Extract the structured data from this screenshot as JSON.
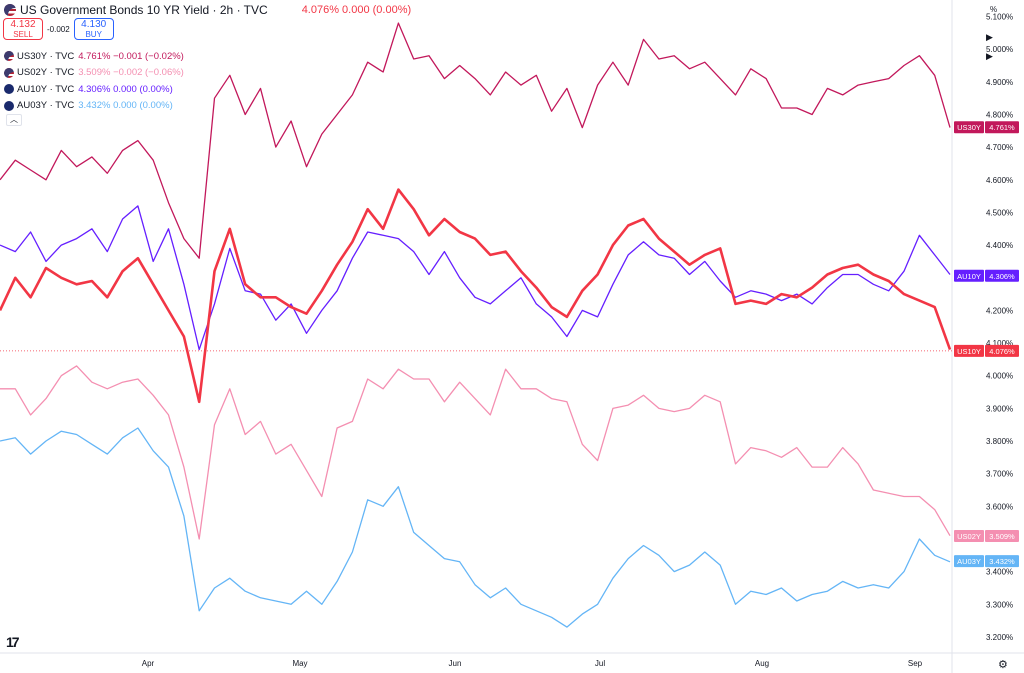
{
  "header": {
    "flag_icon": "us-flag-icon",
    "title": "US Government Bonds 10 YR Yield · 2h · TVC",
    "ohlc": "4.076% 0.000 (0.00%)",
    "ohlc_color": "#f23645"
  },
  "trade": {
    "sell_price": "4.132",
    "sell_label": "SELL",
    "spread": "-0.002",
    "buy_price": "4.130",
    "buy_label": "BUY"
  },
  "legend": [
    {
      "sym": "US30Y · TVC",
      "val": "4.761% −0.001 (−0.02%)",
      "color": "#c2185b",
      "flag": "us"
    },
    {
      "sym": "US02Y · TVC",
      "val": "3.509% −0.002 (−0.06%)",
      "color": "#f48fb1",
      "flag": "us"
    },
    {
      "sym": "AU10Y · TVC",
      "val": "4.306% 0.000 (0.00%)",
      "color": "#651fff",
      "flag": "au"
    },
    {
      "sym": "AU03Y · TVC",
      "val": "3.432% 0.000 (0.00%)",
      "color": "#64b5f6",
      "flag": "au"
    }
  ],
  "yaxis_unit": "%",
  "logo": "17",
  "chart_data": {
    "type": "line",
    "x_labels": [
      "Apr",
      "May",
      "Jun",
      "Jul",
      "Aug",
      "Sep"
    ],
    "ylim": [
      3.16,
      5.12
    ],
    "y_ticks": [
      "5.100%",
      "5.000%",
      "4.900%",
      "4.800%",
      "4.700%",
      "4.600%",
      "4.500%",
      "4.400%",
      "4.300%",
      "4.200%",
      "4.100%",
      "4.000%",
      "3.900%",
      "3.800%",
      "3.700%",
      "3.600%",
      "3.500%",
      "3.400%",
      "3.300%",
      "3.200%"
    ],
    "series": [
      {
        "name": "US30Y",
        "color": "#c2185b",
        "last": "4.761%",
        "last_value": 4.761,
        "values": [
          4.6,
          4.66,
          4.63,
          4.6,
          4.69,
          4.64,
          4.67,
          4.62,
          4.69,
          4.72,
          4.66,
          4.53,
          4.42,
          4.36,
          4.85,
          4.92,
          4.8,
          4.88,
          4.7,
          4.78,
          4.64,
          4.74,
          4.8,
          4.86,
          4.96,
          4.93,
          5.08,
          4.97,
          4.98,
          4.91,
          4.95,
          4.91,
          4.86,
          4.93,
          4.89,
          4.92,
          4.81,
          4.88,
          4.76,
          4.89,
          4.96,
          4.89,
          5.03,
          4.97,
          4.98,
          4.94,
          4.96,
          4.91,
          4.86,
          4.94,
          4.91,
          4.82,
          4.82,
          4.8,
          4.88,
          4.86,
          4.89,
          4.9,
          4.91,
          4.95,
          4.98,
          4.92,
          4.76
        ]
      },
      {
        "name": "US02Y",
        "color": "#f48fb1",
        "last": "3.509%",
        "last_value": 3.509,
        "values": [
          3.96,
          3.96,
          3.88,
          3.93,
          4.0,
          4.03,
          3.98,
          3.96,
          3.98,
          3.99,
          3.94,
          3.88,
          3.72,
          3.5,
          3.85,
          3.96,
          3.82,
          3.86,
          3.76,
          3.79,
          3.71,
          3.63,
          3.84,
          3.86,
          3.99,
          3.96,
          4.02,
          3.99,
          3.99,
          3.92,
          3.98,
          3.93,
          3.88,
          4.02,
          3.96,
          3.96,
          3.93,
          3.92,
          3.79,
          3.74,
          3.9,
          3.91,
          3.94,
          3.9,
          3.89,
          3.9,
          3.94,
          3.92,
          3.73,
          3.78,
          3.77,
          3.75,
          3.78,
          3.72,
          3.72,
          3.78,
          3.73,
          3.65,
          3.64,
          3.63,
          3.63,
          3.59,
          3.51
        ]
      },
      {
        "name": "AU10Y",
        "color": "#651fff",
        "last": "4.306%",
        "last_value": 4.306,
        "values": [
          4.4,
          4.38,
          4.44,
          4.35,
          4.4,
          4.42,
          4.45,
          4.38,
          4.48,
          4.52,
          4.35,
          4.45,
          4.28,
          4.08,
          4.22,
          4.39,
          4.26,
          4.25,
          4.17,
          4.22,
          4.13,
          4.2,
          4.26,
          4.36,
          4.44,
          4.43,
          4.42,
          4.38,
          4.31,
          4.38,
          4.3,
          4.24,
          4.22,
          4.26,
          4.3,
          4.22,
          4.18,
          4.12,
          4.2,
          4.18,
          4.28,
          4.37,
          4.41,
          4.37,
          4.36,
          4.31,
          4.35,
          4.29,
          4.24,
          4.26,
          4.25,
          4.23,
          4.25,
          4.22,
          4.27,
          4.31,
          4.31,
          4.28,
          4.26,
          4.32,
          4.43,
          4.37,
          4.31
        ]
      },
      {
        "name": "US10Y",
        "color": "#f23645",
        "last": "4.076%",
        "last_value": 4.076,
        "values": [
          4.2,
          4.3,
          4.24,
          4.33,
          4.3,
          4.28,
          4.29,
          4.24,
          4.32,
          4.36,
          4.28,
          4.2,
          4.12,
          3.92,
          4.32,
          4.45,
          4.28,
          4.24,
          4.24,
          4.21,
          4.19,
          4.26,
          4.34,
          4.41,
          4.51,
          4.45,
          4.57,
          4.51,
          4.43,
          4.48,
          4.44,
          4.42,
          4.37,
          4.38,
          4.32,
          4.27,
          4.21,
          4.18,
          4.26,
          4.31,
          4.4,
          4.46,
          4.48,
          4.42,
          4.38,
          4.34,
          4.37,
          4.39,
          4.22,
          4.23,
          4.22,
          4.25,
          4.24,
          4.27,
          4.31,
          4.33,
          4.34,
          4.31,
          4.29,
          4.25,
          4.23,
          4.21,
          4.08
        ]
      },
      {
        "name": "AU03Y",
        "color": "#64b5f6",
        "last": "3.432%",
        "last_value": 3.432,
        "values": [
          3.8,
          3.81,
          3.76,
          3.8,
          3.83,
          3.82,
          3.79,
          3.76,
          3.81,
          3.84,
          3.77,
          3.72,
          3.57,
          3.28,
          3.35,
          3.38,
          3.34,
          3.32,
          3.31,
          3.3,
          3.34,
          3.3,
          3.37,
          3.46,
          3.62,
          3.6,
          3.66,
          3.52,
          3.48,
          3.44,
          3.43,
          3.36,
          3.32,
          3.35,
          3.3,
          3.28,
          3.26,
          3.23,
          3.27,
          3.3,
          3.38,
          3.44,
          3.48,
          3.45,
          3.4,
          3.42,
          3.46,
          3.42,
          3.3,
          3.34,
          3.33,
          3.35,
          3.31,
          3.33,
          3.34,
          3.37,
          3.35,
          3.36,
          3.35,
          3.4,
          3.5,
          3.45,
          3.43
        ]
      }
    ]
  }
}
